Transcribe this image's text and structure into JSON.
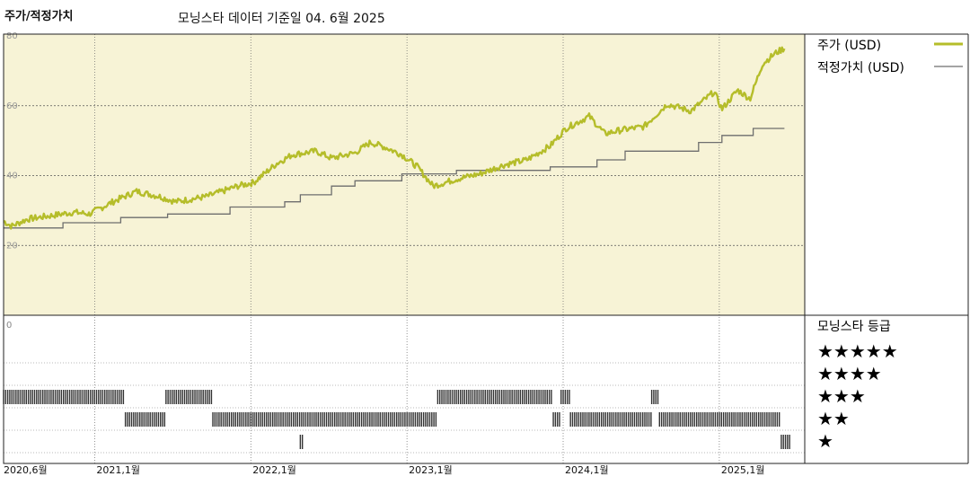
{
  "header": {
    "title": "주가/적정가치",
    "subtitle": "모닝스타 데이터 기준일 04. 6월 2025"
  },
  "colors": {
    "price": "#b5bd2a",
    "fair_value": "#6e6e6e",
    "panel_bg": "#f7f3d6",
    "rating_bar": "#333333"
  },
  "chart_data": {
    "type": "line",
    "x_start": "2020-06",
    "x_end": "2025-06",
    "xticks": [
      {
        "label": "2020,6월",
        "t": 0
      },
      {
        "label": "2021,1월",
        "t": 0.583
      },
      {
        "label": "2022,1월",
        "t": 1.583
      },
      {
        "label": "2023,1월",
        "t": 2.583
      },
      {
        "label": "2024,1월",
        "t": 3.583
      },
      {
        "label": "2025,1월",
        "t": 4.583
      }
    ],
    "ylim": [
      0,
      80
    ],
    "yticks": [
      0,
      20,
      40,
      60,
      80
    ],
    "grid": true,
    "legend_position": "right",
    "series": [
      {
        "name": "주가 (USD)",
        "x": [
          0,
          0.05,
          0.15,
          0.3,
          0.45,
          0.55,
          0.7,
          0.85,
          1.0,
          1.1,
          1.3,
          1.5,
          1.6,
          1.75,
          1.85,
          2.0,
          2.1,
          2.25,
          2.35,
          2.45,
          2.55,
          2.65,
          2.75,
          2.9,
          3.05,
          3.2,
          3.35,
          3.5,
          3.6,
          3.75,
          3.85,
          3.95,
          4.1,
          4.25,
          4.4,
          4.55,
          4.6,
          4.7,
          4.78,
          4.86,
          4.94,
          5.0
        ],
        "y": [
          27,
          25.5,
          27.5,
          28.5,
          29.5,
          29,
          32.5,
          35.5,
          34,
          32.5,
          34,
          37,
          38,
          43.5,
          46,
          47,
          45,
          46.5,
          49.5,
          48,
          46,
          42.5,
          37,
          39,
          40.5,
          43,
          44.5,
          48.5,
          53.5,
          57,
          52,
          53,
          54,
          60.5,
          58.5,
          64,
          59,
          64.5,
          62,
          72,
          75,
          76.5
        ]
      },
      {
        "name": "적정가치 (USD)",
        "x": [
          0,
          0.38,
          0.75,
          1.05,
          1.45,
          1.8,
          1.9,
          2.1,
          2.25,
          2.55,
          2.9,
          3.5,
          3.8,
          3.98,
          4.45,
          4.6,
          4.8,
          5.0
        ],
        "y": [
          25,
          26.5,
          28,
          29,
          31,
          32.5,
          34.5,
          37,
          38.5,
          40.5,
          41.5,
          42.5,
          44.5,
          47,
          49.5,
          51.5,
          53.5,
          53.5
        ]
      }
    ],
    "rating_panel": {
      "title": "모닝스타 등급",
      "levels": [
        "★★★★★",
        "★★★★",
        "★★★",
        "★★",
        "★"
      ],
      "ylabel": "0",
      "segments": [
        {
          "stars": 3,
          "x0": 0.0,
          "x1": 0.78
        },
        {
          "stars": 2,
          "x0": 0.78,
          "x1": 1.04
        },
        {
          "stars": 3,
          "x0": 1.04,
          "x1": 1.34
        },
        {
          "stars": 2,
          "x0": 1.34,
          "x1": 2.78
        },
        {
          "stars": 1,
          "x0": 1.9,
          "x1": 1.915
        },
        {
          "stars": 3,
          "x0": 2.78,
          "x1": 3.52
        },
        {
          "stars": 2,
          "x0": 3.52,
          "x1": 3.57
        },
        {
          "stars": 3,
          "x0": 3.57,
          "x1": 3.63
        },
        {
          "stars": 2,
          "x0": 3.63,
          "x1": 4.15
        },
        {
          "stars": 3,
          "x0": 4.15,
          "x1": 4.2
        },
        {
          "stars": 2,
          "x0": 4.2,
          "x1": 4.98
        },
        {
          "stars": 1,
          "x0": 4.98,
          "x1": 5.04
        }
      ]
    }
  }
}
